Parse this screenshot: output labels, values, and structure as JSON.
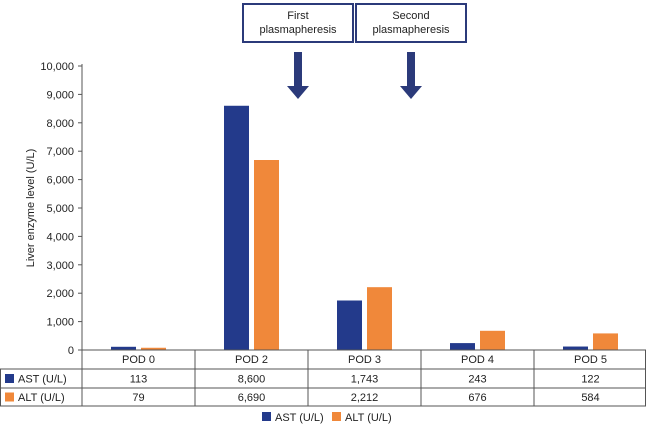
{
  "chart_data": {
    "type": "bar",
    "title": "",
    "xlabel": "",
    "ylabel": "Liver enzyme level (U/L)",
    "ylim": [
      0,
      10000
    ],
    "yticks": [
      0,
      1000,
      2000,
      3000,
      4000,
      5000,
      6000,
      7000,
      8000,
      9000,
      10000
    ],
    "ytick_labels": [
      "0",
      "1,000",
      "2,000",
      "3,000",
      "4,000",
      "5,000",
      "6,000",
      "7,000",
      "8,000",
      "9,000",
      "10,000"
    ],
    "categories": [
      "POD 0",
      "POD 2",
      "POD 3",
      "POD 4",
      "POD 5"
    ],
    "series": [
      {
        "name": "AST (U/L)",
        "color": "#233a8b",
        "values": [
          113,
          8600,
          1743,
          243,
          122
        ],
        "labels": [
          "113",
          "8,600",
          "1,743",
          "243",
          "122"
        ]
      },
      {
        "name": "ALT (U/L)",
        "color": "#f0883a",
        "values": [
          79,
          6690,
          2212,
          676,
          584
        ],
        "labels": [
          "79",
          "6,690",
          "2,212",
          "676",
          "584"
        ]
      }
    ],
    "annotations": [
      {
        "lines": [
          "First",
          "plasmapheresis"
        ],
        "between": [
          "POD 2",
          "POD 3"
        ]
      },
      {
        "lines": [
          "Second",
          "plasmapheresis"
        ],
        "between": [
          "POD 3",
          "POD 4"
        ]
      }
    ],
    "legend_position": "bottom",
    "grid": false
  }
}
